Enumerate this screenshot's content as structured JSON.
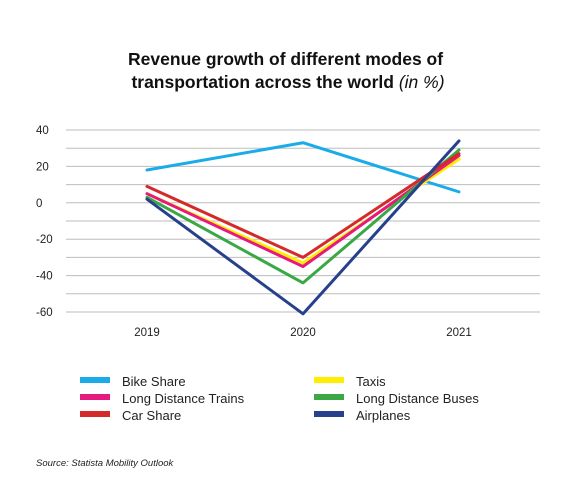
{
  "chart_data": {
    "type": "line",
    "title": "Revenue growth of different modes of transportation across the world",
    "title_unit": "(in %)",
    "categories": [
      "2019",
      "2020",
      "2021"
    ],
    "ylim": [
      -60,
      40
    ],
    "yticks": [
      40,
      20,
      0,
      -20,
      -40,
      -60
    ],
    "grid": true,
    "legend_position": "bottom",
    "series": [
      {
        "name": "Bike Share",
        "color": "#1aace8",
        "values": [
          18,
          33,
          6
        ]
      },
      {
        "name": "Taxis",
        "color": "#ffee00",
        "values": [
          5,
          -33,
          24
        ]
      },
      {
        "name": "Long Distance Trains",
        "color": "#e6197f",
        "values": [
          5,
          -35,
          26
        ]
      },
      {
        "name": "Long Distance Buses",
        "color": "#3aa845",
        "values": [
          3,
          -44,
          29
        ]
      },
      {
        "name": "Car Share",
        "color": "#d42a2a",
        "values": [
          9,
          -30,
          27
        ]
      },
      {
        "name": "Airplanes",
        "color": "#27408b",
        "values": [
          2,
          -61,
          34
        ]
      }
    ],
    "source": "Source: Statista Mobility Outlook"
  }
}
